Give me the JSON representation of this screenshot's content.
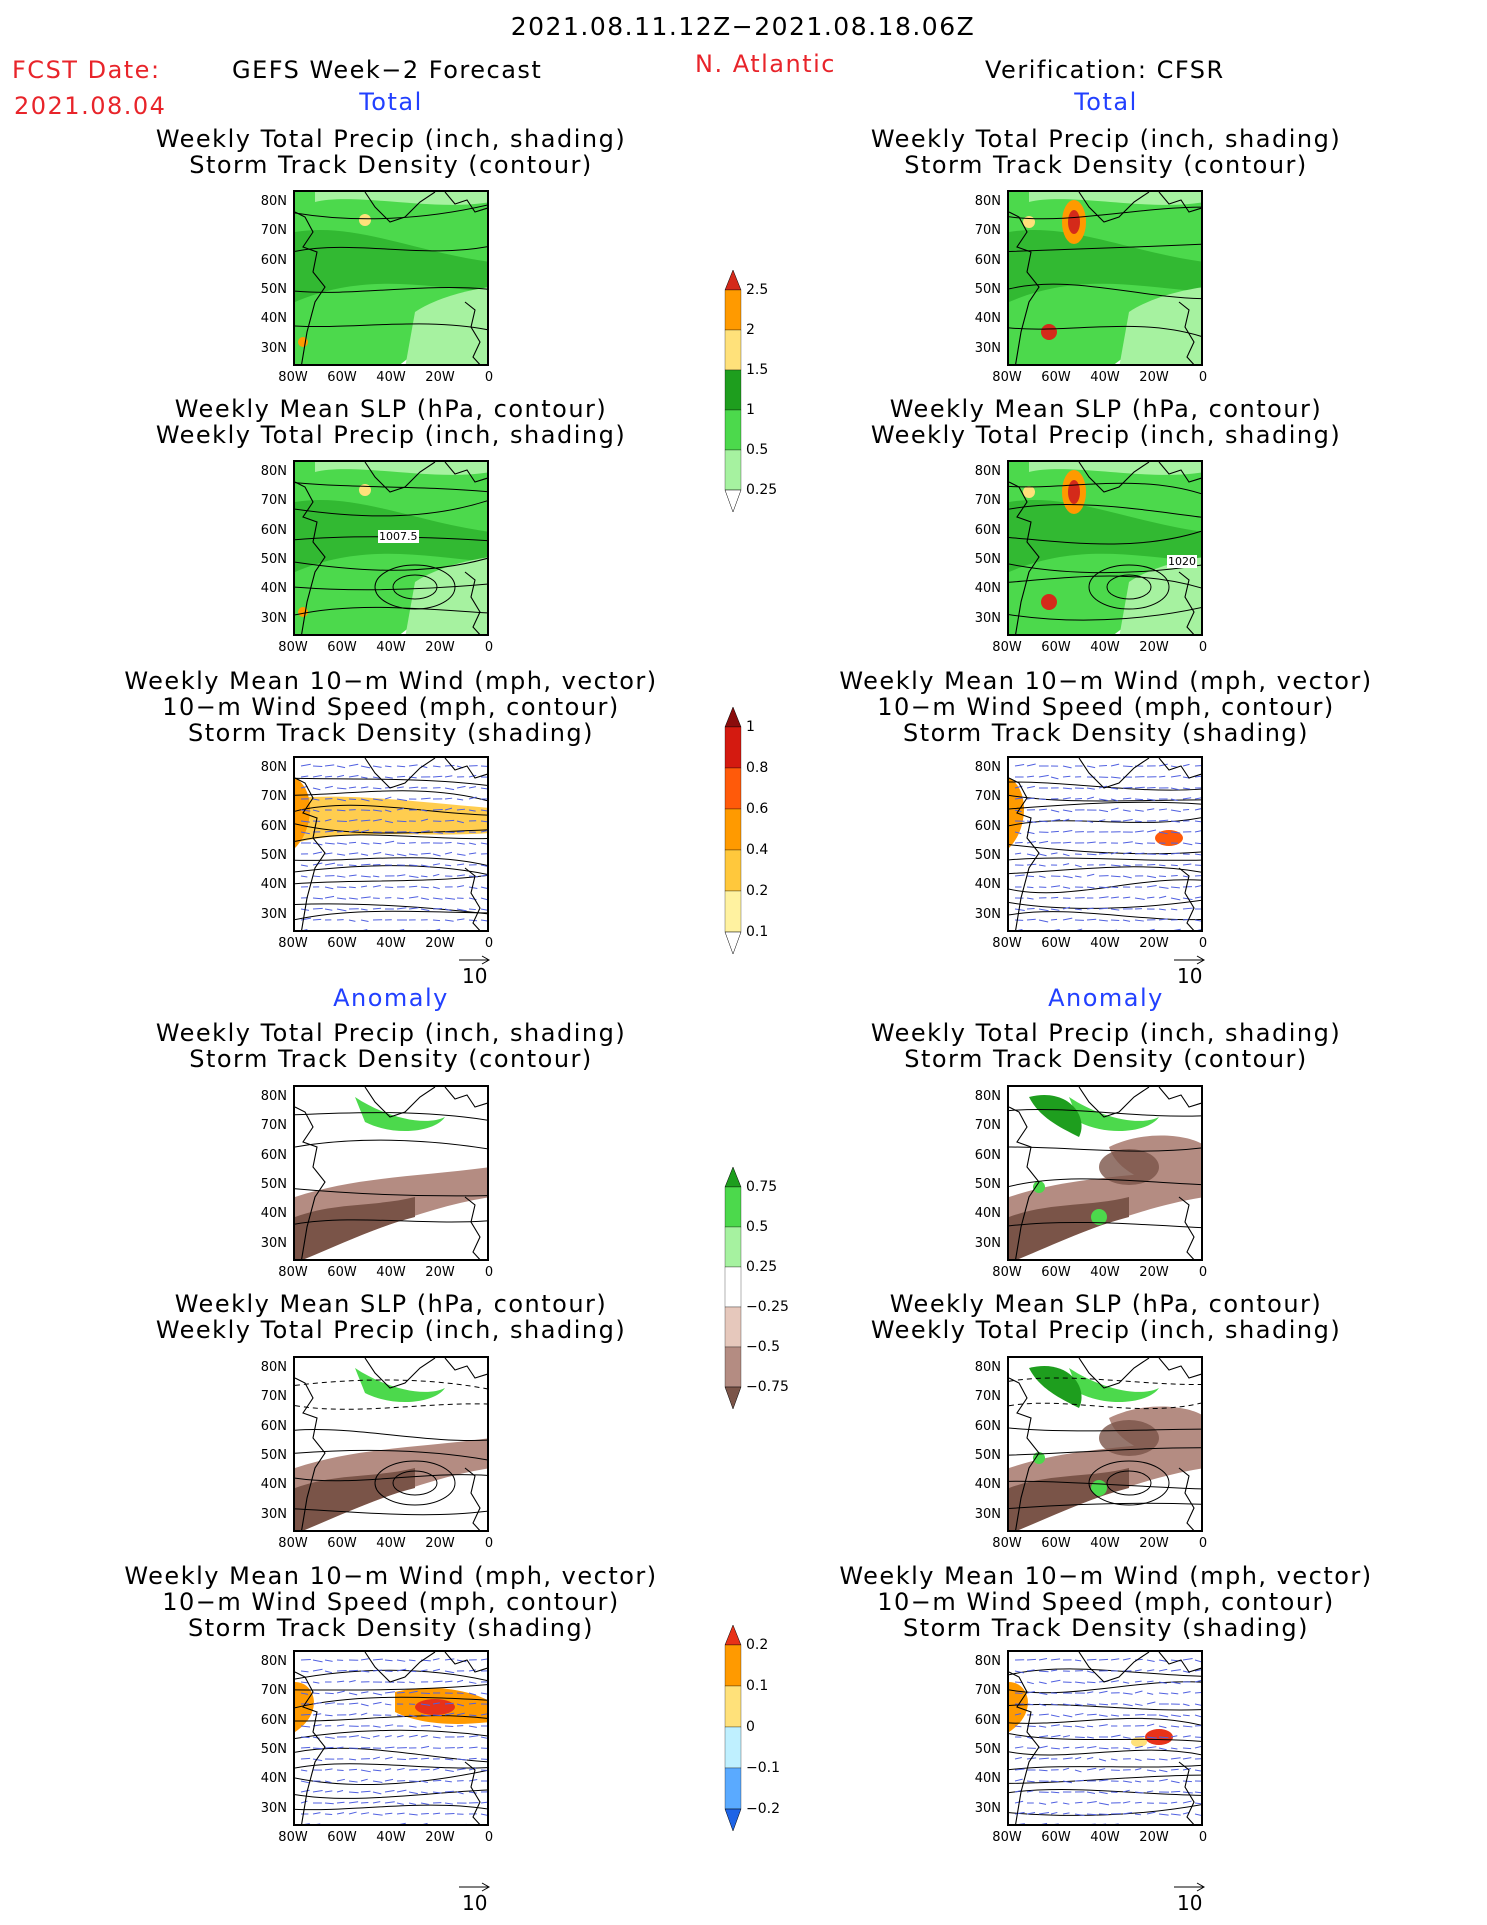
{
  "header": {
    "period": "2021.08.11.12Z−2021.08.18.06Z",
    "fcst_label": "FCST Date:",
    "fcst_date": "2021.08.04",
    "left_title": "GEFS Week−2 Forecast",
    "region": "N. Atlantic",
    "right_title": "Verification: CFSR"
  },
  "sections": {
    "total": "Total",
    "anomaly": "Anomaly"
  },
  "panel_titles": {
    "precip_track": [
      "Weekly Total Precip (inch, shading)",
      "Storm Track Density (contour)"
    ],
    "slp_precip": [
      "Weekly Mean SLP (hPa, contour)",
      "Weekly Total Precip (inch, shading)"
    ],
    "wind_track": [
      "Weekly Mean 10−m Wind (mph, vector)",
      "10−m Wind Speed (mph, contour)",
      "Storm Track Density (shading)"
    ]
  },
  "axes": {
    "lat_labels": [
      "80N",
      "70N",
      "60N",
      "50N",
      "40N",
      "30N"
    ],
    "lon_labels": [
      "80W",
      "60W",
      "40W",
      "20W",
      "0"
    ]
  },
  "contour_labels": {
    "fcst_slp": "1007.5",
    "obs_slp": "1020"
  },
  "vector_ref": "10",
  "colorbars": {
    "precip_total": {
      "labels": [
        "2.5",
        "2",
        "1.5",
        "1",
        "0.5",
        "0.25"
      ],
      "colors": [
        "#d42a1a",
        "#ff9a00",
        "#ffe17a",
        "#1e9e1e",
        "#4cd94c",
        "#a6f2a0"
      ]
    },
    "track_total": {
      "labels": [
        "1",
        "0.8",
        "0.6",
        "0.4",
        "0.2",
        "0.1"
      ],
      "colors": [
        "#8a0c0c",
        "#d41a10",
        "#ff5a0a",
        "#ff9a00",
        "#ffc83c",
        "#fff2a0"
      ]
    },
    "precip_anom": {
      "labels": [
        "0.75",
        "0.5",
        "0.25",
        "−0.25",
        "−0.5",
        "−0.75"
      ],
      "colors": [
        "#1e9e1e",
        "#4cd94c",
        "#a6f2a0",
        "#ffffff",
        "#e6c8bc",
        "#b48c82",
        "#7a5448"
      ]
    },
    "track_anom": {
      "labels": [
        "0.2",
        "0.1",
        "0",
        "−0.1",
        "−0.2"
      ],
      "colors": [
        "#e83218",
        "#ff9a00",
        "#ffe17a",
        "#bff0ff",
        "#5aaaff",
        "#1e64e6"
      ]
    }
  }
}
